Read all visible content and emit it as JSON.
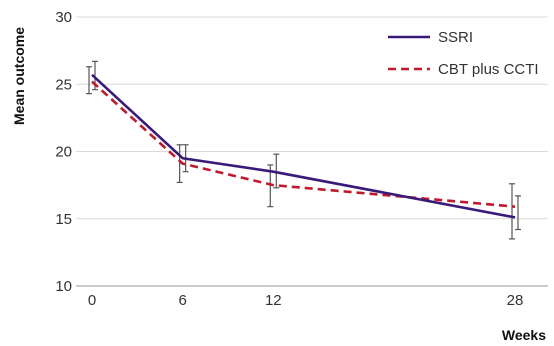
{
  "chart_data": {
    "type": "line",
    "title": "",
    "xlabel": "Weeks",
    "ylabel": "Mean outcome",
    "x": [
      0,
      6,
      12,
      28
    ],
    "x_ticks": [
      "0",
      "6",
      "12",
      "28"
    ],
    "y_ticks": [
      "10",
      "15",
      "20",
      "25",
      "30"
    ],
    "xlim": [
      0,
      28
    ],
    "ylim": [
      10,
      30
    ],
    "grid": "horizontal",
    "legend_position": "top-right",
    "series": [
      {
        "name": "SSRI",
        "color": "#3a1a78",
        "line_style": "solid",
        "values": [
          25.7,
          19.5,
          18.5,
          15.1
        ],
        "error_low": [
          24.6,
          18.5,
          17.3,
          14.2
        ],
        "error_high": [
          26.7,
          20.5,
          19.8,
          16.7
        ]
      },
      {
        "name": "CBT plus CCTI",
        "color": "#c0182d",
        "line_style": "dashed",
        "values": [
          25.2,
          19.1,
          17.5,
          15.9
        ],
        "error_low": [
          24.3,
          17.7,
          15.9,
          13.5
        ],
        "error_high": [
          26.3,
          20.5,
          19.0,
          17.6
        ]
      }
    ]
  }
}
